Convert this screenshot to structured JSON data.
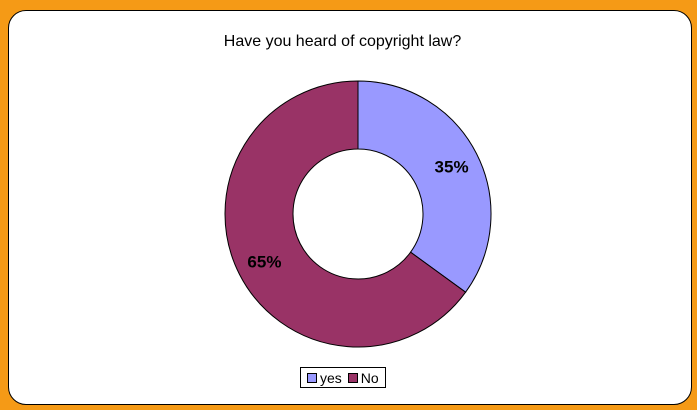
{
  "chart_data": {
    "type": "pie",
    "variant": "doughnut",
    "title": "Have you heard of copyright law?",
    "categories": [
      "yes",
      "No"
    ],
    "values": [
      35,
      65
    ],
    "data_labels": [
      "35%",
      "65%"
    ],
    "colors": [
      "#9999FF",
      "#993366"
    ],
    "legend_position": "bottom"
  },
  "legend": {
    "items": [
      {
        "label": "yes",
        "color": "#9999FF"
      },
      {
        "label": "No",
        "color": "#993366"
      }
    ]
  }
}
